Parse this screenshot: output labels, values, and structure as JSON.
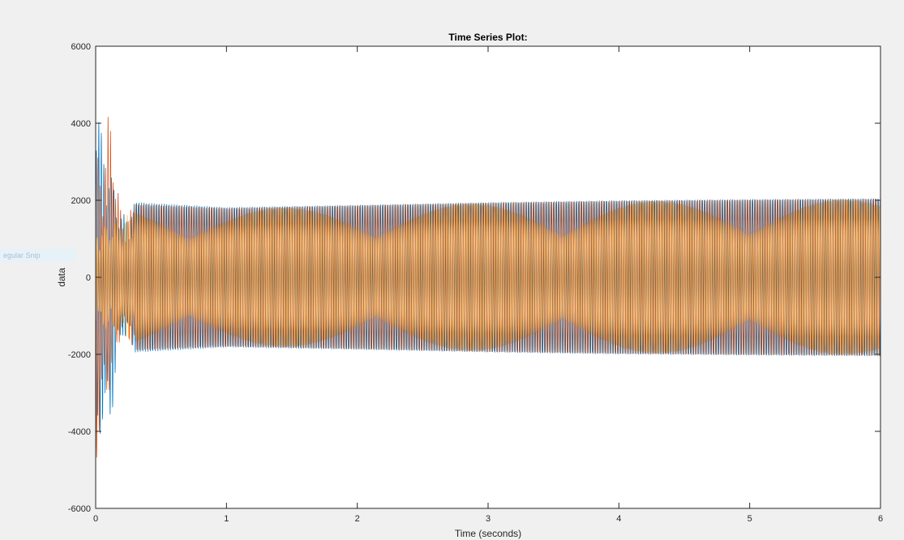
{
  "side_tab": {
    "label": "egular Snip"
  },
  "chart_data": {
    "type": "line",
    "title": "Time Series Plot:",
    "xlabel": "Time (seconds)",
    "ylabel": "data",
    "xlim": [
      0,
      6
    ],
    "ylim": [
      -6000,
      6000
    ],
    "x_ticks": [
      0,
      1,
      2,
      3,
      4,
      5,
      6
    ],
    "y_ticks": [
      -6000,
      -4000,
      -2000,
      0,
      2000,
      4000,
      6000
    ],
    "grid": false,
    "series": [
      {
        "color": "#0072bd",
        "envelope_x": [
          0,
          0.05,
          0.1,
          0.2,
          0.3,
          1,
          2,
          3,
          4,
          5,
          6
        ],
        "envelope_max": [
          5400,
          3500,
          2900,
          1600,
          1950,
          1820,
          1880,
          1950,
          2000,
          2030,
          2050
        ],
        "envelope_min": [
          -5000,
          -3800,
          -4200,
          -1500,
          -1950,
          -1820,
          -1880,
          -1950,
          -2000,
          -2030,
          -2050
        ]
      },
      {
        "color": "#d95319",
        "envelope_x": [
          0,
          0.05,
          0.1,
          0.2,
          0.3,
          1,
          2,
          3,
          4,
          5,
          6
        ],
        "envelope_max": [
          3500,
          2500,
          4450,
          1500,
          1900,
          1800,
          1870,
          1940,
          1990,
          2020,
          2040
        ],
        "envelope_min": [
          -5000,
          -3500,
          -3000,
          -1400,
          -1900,
          -1800,
          -1870,
          -1940,
          -1990,
          -2020,
          -2040
        ]
      },
      {
        "color": "#ffb84d",
        "envelope_x": [
          0,
          0.3,
          1,
          2,
          3,
          4,
          5,
          6
        ],
        "envelope_max": [
          1200,
          1850,
          1780,
          1850,
          1920,
          1970,
          2000,
          2020
        ],
        "envelope_min": [
          -1200,
          -1850,
          -1780,
          -1850,
          -1920,
          -1970,
          -2000,
          -2020
        ]
      }
    ]
  }
}
